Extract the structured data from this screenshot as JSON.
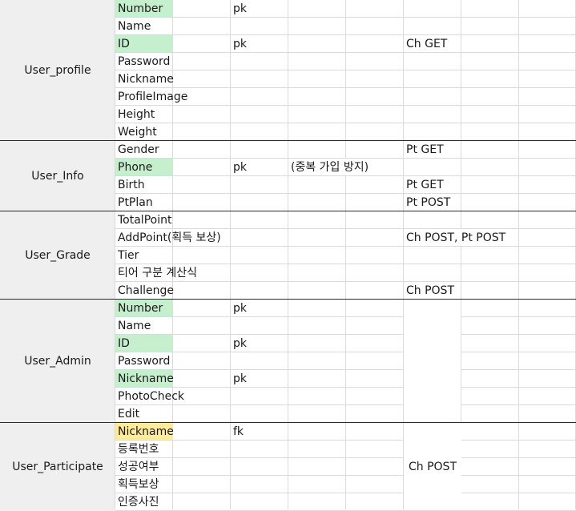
{
  "groups": [
    {
      "label": "User_profile",
      "rows": [
        {
          "field": "Number",
          "highlight": "green",
          "key": "pk",
          "note": "",
          "method": ""
        },
        {
          "field": "Name",
          "highlight": "",
          "key": "",
          "note": "",
          "method": ""
        },
        {
          "field": "ID",
          "highlight": "green",
          "key": "pk",
          "note": "",
          "method": "Ch GET"
        },
        {
          "field": "Password",
          "highlight": "",
          "key": "",
          "note": "",
          "method": ""
        },
        {
          "field": "Nickname",
          "highlight": "",
          "key": "",
          "note": "",
          "method": ""
        },
        {
          "field": "ProfileImage",
          "highlight": "",
          "key": "",
          "note": "",
          "method": ""
        },
        {
          "field": "Height",
          "highlight": "",
          "key": "",
          "note": "",
          "method": ""
        },
        {
          "field": "Weight",
          "highlight": "",
          "key": "",
          "note": "",
          "method": ""
        }
      ]
    },
    {
      "label": "User_Info",
      "rows": [
        {
          "field": "Gender",
          "highlight": "",
          "key": "",
          "note": "",
          "method": "Pt GET"
        },
        {
          "field": "Phone",
          "highlight": "green",
          "key": "pk",
          "note": "(중복 가입 방지)",
          "method": ""
        },
        {
          "field": "Birth",
          "highlight": "",
          "key": "",
          "note": "",
          "method": "Pt GET"
        },
        {
          "field": "PtPlan",
          "highlight": "",
          "key": "",
          "note": "",
          "method": "Pt POST"
        }
      ]
    },
    {
      "label": "User_Grade",
      "rows": [
        {
          "field": "TotalPoint",
          "highlight": "",
          "key": "",
          "note": "",
          "method": ""
        },
        {
          "field": "AddPoint(획득 보상)",
          "highlight": "",
          "key": "",
          "note": "",
          "method": "Ch POST, Pt POST"
        },
        {
          "field": "Tier",
          "highlight": "",
          "key": "",
          "note": "",
          "method": ""
        },
        {
          "field": "티어 구분 계산식",
          "highlight": "",
          "key": "",
          "note": "",
          "method": ""
        },
        {
          "field": "Challenge",
          "highlight": "",
          "key": "",
          "note": "",
          "method": "Ch POST"
        }
      ]
    },
    {
      "label": "User_Admin",
      "rows": [
        {
          "field": "Number",
          "highlight": "green",
          "key": "pk",
          "note": "",
          "method": ""
        },
        {
          "field": "Name",
          "highlight": "",
          "key": "",
          "note": "",
          "method": ""
        },
        {
          "field": "ID",
          "highlight": "green",
          "key": "pk",
          "note": "",
          "method": ""
        },
        {
          "field": "Password",
          "highlight": "",
          "key": "",
          "note": "",
          "method": ""
        },
        {
          "field": "Nickname",
          "highlight": "green",
          "key": "pk",
          "note": "",
          "method": ""
        },
        {
          "field": "PhotoCheck",
          "highlight": "",
          "key": "",
          "note": "",
          "method": ""
        },
        {
          "field": "Edit",
          "highlight": "",
          "key": "",
          "note": "",
          "method": ""
        }
      ]
    },
    {
      "label": "User_Participate",
      "merged_method": "Ch POST",
      "rows": [
        {
          "field": "Nickname",
          "highlight": "yellow",
          "key": "fk",
          "note": "",
          "method": ""
        },
        {
          "field": "등록번호",
          "highlight": "",
          "key": "",
          "note": "",
          "method": ""
        },
        {
          "field": "성공여부",
          "highlight": "",
          "key": "",
          "note": "",
          "method": ""
        },
        {
          "field": "획득보상",
          "highlight": "",
          "key": "",
          "note": "",
          "method": ""
        },
        {
          "field": "인증사진",
          "highlight": "",
          "key": "",
          "note": "",
          "method": ""
        }
      ]
    }
  ],
  "colors": {
    "green": "#c6efce",
    "yellow": "#ffeb9c",
    "gridline": "#dadada",
    "separator": "#2b2b2b",
    "label_bg": "#efefef"
  }
}
